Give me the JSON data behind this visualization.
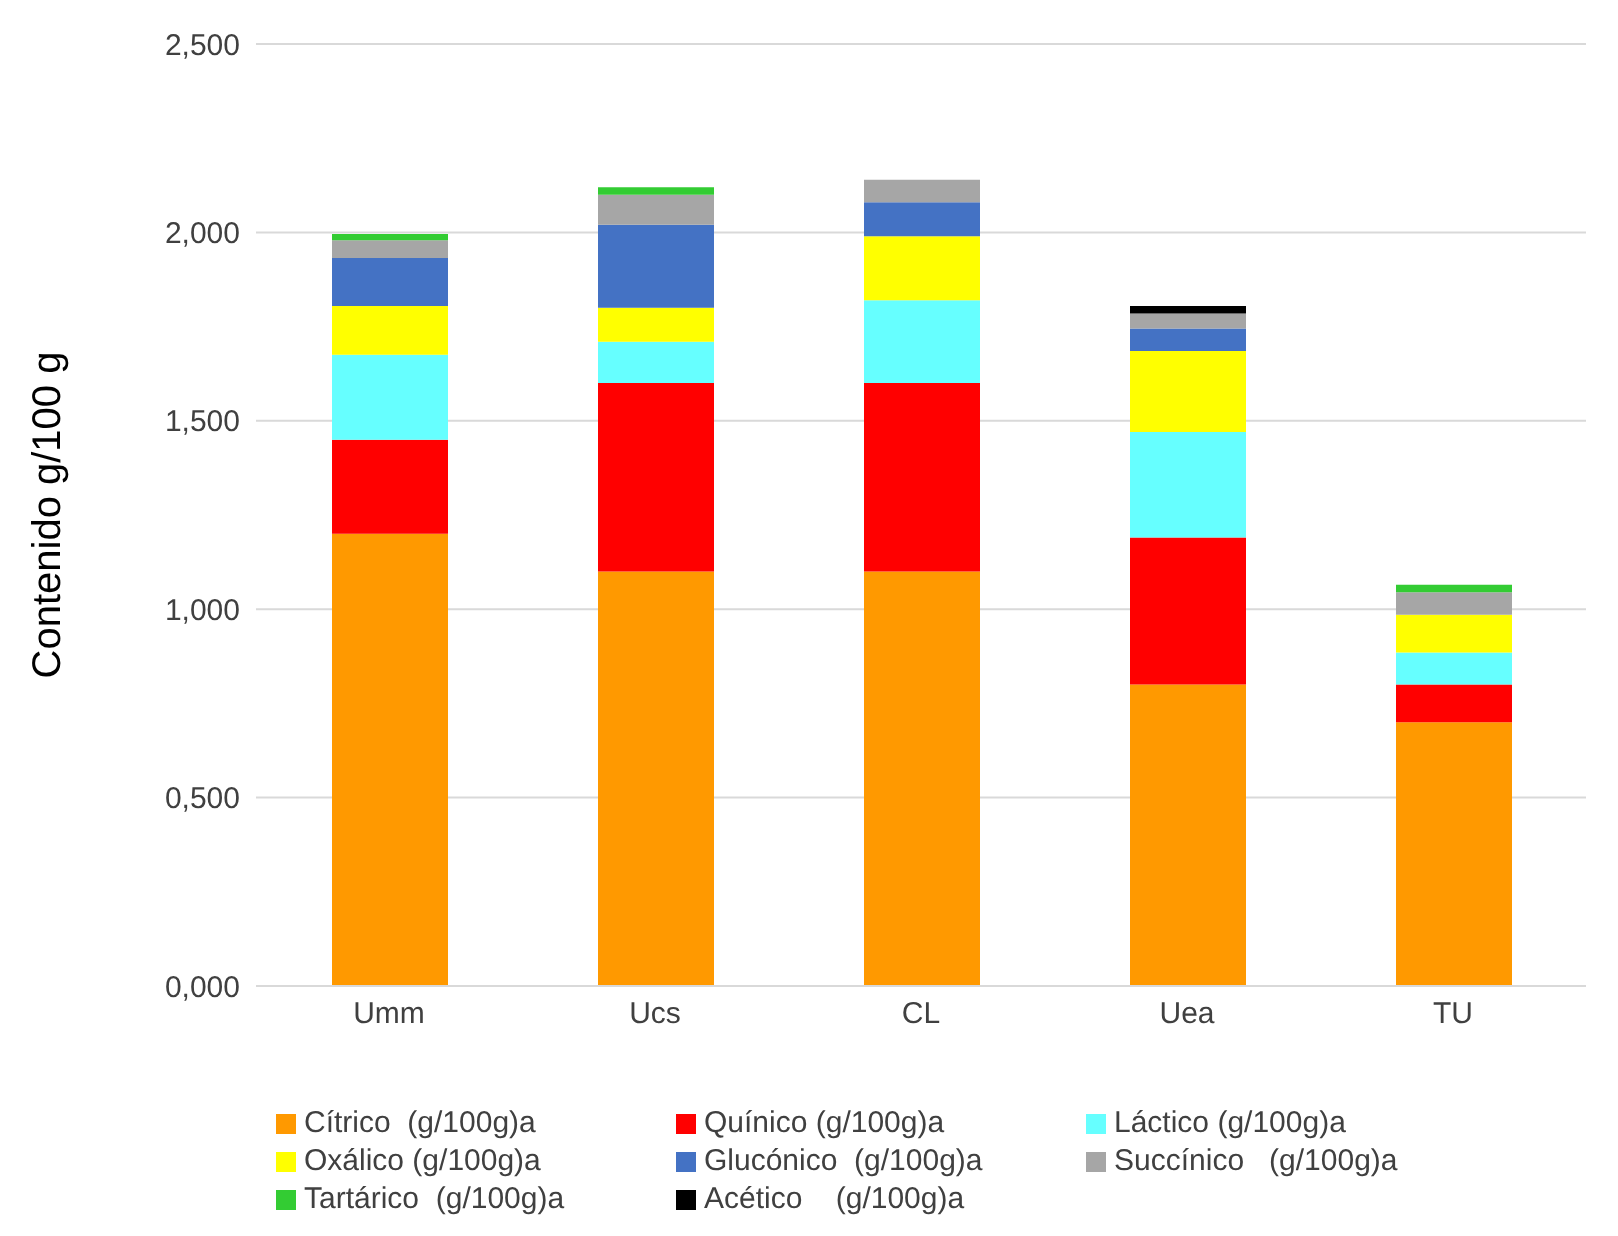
{
  "chart_data": {
    "type": "bar",
    "stacked": true,
    "ylabel": "Contenido g/100 g",
    "categories": [
      "Umm",
      "Ucs",
      "CL",
      "Uea",
      "TU"
    ],
    "series": [
      {
        "name": "Cítrico  (g/100g)a",
        "color": "#ff9900",
        "values": [
          1.2,
          1.1,
          1.1,
          0.8,
          0.7
        ]
      },
      {
        "name": "Quínico (g/100g)a",
        "color": "#ff0000",
        "values": [
          0.25,
          0.5,
          0.5,
          0.39,
          0.1
        ]
      },
      {
        "name": "Láctico (g/100g)a",
        "color": "#66ffff",
        "values": [
          0.225,
          0.11,
          0.22,
          0.28,
          0.085
        ]
      },
      {
        "name": "Oxálico (g/100g)a",
        "color": "#ffff00",
        "values": [
          0.13,
          0.09,
          0.17,
          0.215,
          0.1
        ]
      },
      {
        "name": "Glucónico  (g/100g)a",
        "color": "#4472c4",
        "values": [
          0.127,
          0.22,
          0.09,
          0.06,
          null
        ]
      },
      {
        "name": "Succínico   (g/100g)a",
        "color": "#a6a6a6",
        "values": [
          0.047,
          0.08,
          0.06,
          0.04,
          0.06
        ]
      },
      {
        "name": "Tartárico  (g/100g)a",
        "color": "#33cc33",
        "values": [
          0.017,
          0.02,
          null,
          null,
          0.02
        ]
      },
      {
        "name": "Acético    (g/100g)a",
        "color": "#000000",
        "values": [
          null,
          null,
          null,
          0.02,
          null
        ]
      }
    ],
    "ylim": [
      0,
      2.5
    ],
    "yticks": [
      {
        "value": 0,
        "label": "0,000"
      },
      {
        "value": 0.5,
        "label": "0,500"
      },
      {
        "value": 1,
        "label": "1,000"
      },
      {
        "value": 1.5,
        "label": "1,500"
      },
      {
        "value": 2,
        "label": "2,000"
      },
      {
        "value": 2.5,
        "label": "2,500"
      }
    ],
    "grid": "y",
    "legend": "bottom"
  }
}
